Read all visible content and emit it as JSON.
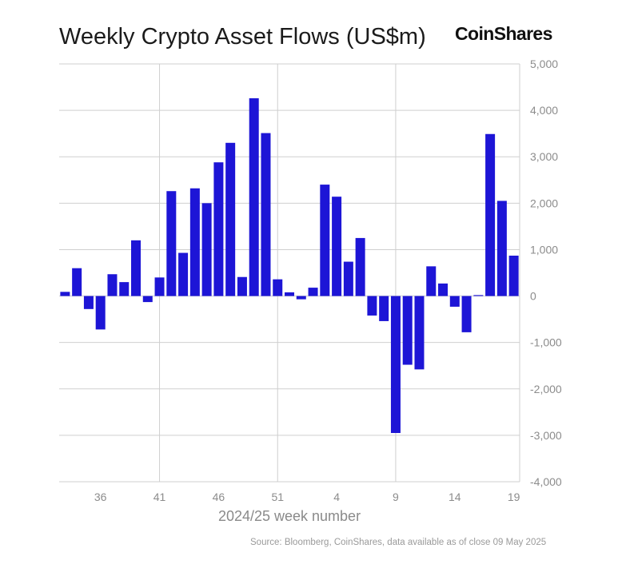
{
  "header": {
    "title": "Weekly Crypto Asset Flows (US$m)",
    "brand": "CoinShares"
  },
  "footer": {
    "source": "Source: Bloomberg, CoinShares, data available as of close 09 May 2025"
  },
  "colors": {
    "bar": "#1d15d6",
    "grid": "#cfcfcf",
    "axis_text": "#8c8c8c",
    "xlabel_text": "#8a8a8a"
  },
  "chart_data": {
    "type": "bar",
    "title": "Weekly Crypto Asset Flows (US$m)",
    "xlabel": "2024/25 week number",
    "ylabel": "",
    "ylim": [
      -4000,
      5000
    ],
    "yticks": [
      5000,
      4000,
      3000,
      2000,
      1000,
      0,
      -1000,
      -2000,
      -3000,
      -4000
    ],
    "ytick_labels": [
      "5,000",
      "4,000",
      "3,000",
      "2,000",
      "1,000",
      "0",
      "-1,000",
      "-2,000",
      "-3,000",
      "-4,000"
    ],
    "xtick_labels": [
      "36",
      "41",
      "46",
      "51",
      "4",
      "9",
      "14",
      "19"
    ],
    "xtick_weeks": [
      36,
      41,
      46,
      51,
      4,
      9,
      14,
      19
    ],
    "grid": true,
    "legend": "none",
    "categories": [
      33,
      34,
      35,
      36,
      37,
      38,
      39,
      40,
      41,
      42,
      43,
      44,
      45,
      46,
      47,
      48,
      49,
      50,
      51,
      52,
      1,
      2,
      3,
      4,
      5,
      6,
      7,
      8,
      9,
      10,
      11,
      12,
      13,
      14,
      15,
      16,
      17,
      18,
      19
    ],
    "values": [
      90,
      600,
      -280,
      -720,
      470,
      300,
      1200,
      -130,
      400,
      2260,
      930,
      2320,
      2000,
      2880,
      3300,
      410,
      4260,
      3510,
      360,
      80,
      -70,
      180,
      2400,
      2140,
      740,
      1250,
      -420,
      -540,
      -2950,
      -1480,
      -1580,
      640,
      270,
      -230,
      -780,
      20,
      3490,
      2050,
      870
    ]
  }
}
